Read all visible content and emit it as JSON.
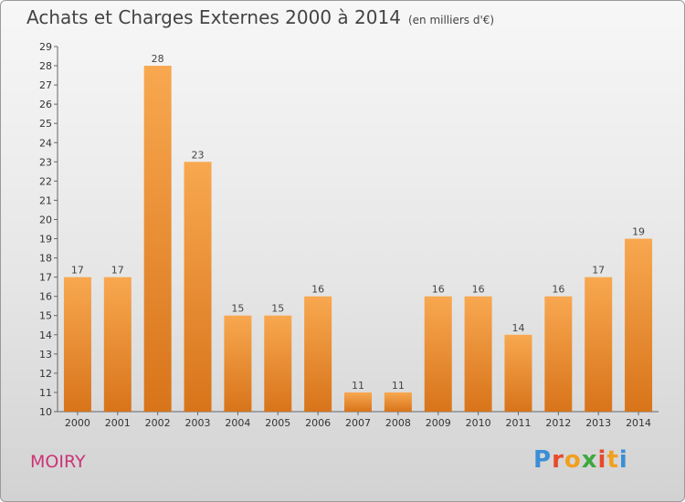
{
  "header": {
    "title": "Achats et Charges Externes 2000 à 2014",
    "unit": "(en milliers d'€)"
  },
  "footer": {
    "commune": "MOIRY",
    "logo": "Proxiti"
  },
  "colors": {
    "bar_light": "#f8a850",
    "bar_dark": "#d8741a",
    "title": "#444444",
    "commune": "#cc3377",
    "logo_letters": [
      "#3a8fd6",
      "#e8492a",
      "#f0a020",
      "#3fa83f",
      "#e8492a",
      "#f0a020",
      "#3a8fd6"
    ]
  },
  "chart_data": {
    "type": "bar",
    "categories": [
      "2000",
      "2001",
      "2002",
      "2003",
      "2004",
      "2005",
      "2006",
      "2007",
      "2008",
      "2009",
      "2010",
      "2011",
      "2012",
      "2013",
      "2014"
    ],
    "values": [
      17,
      17,
      28,
      23,
      15,
      15,
      16,
      11,
      11,
      16,
      16,
      14,
      16,
      17,
      19
    ],
    "title": "Achats et Charges Externes 2000 à 2014",
    "subtitle": "(en milliers d'€)",
    "xlabel": "",
    "ylabel": "",
    "ylim": [
      10,
      29
    ],
    "yticks": [
      10,
      11,
      12,
      13,
      14,
      15,
      16,
      17,
      18,
      19,
      20,
      21,
      22,
      23,
      24,
      25,
      26,
      27,
      28,
      29
    ],
    "grid": false,
    "legend": "none"
  }
}
